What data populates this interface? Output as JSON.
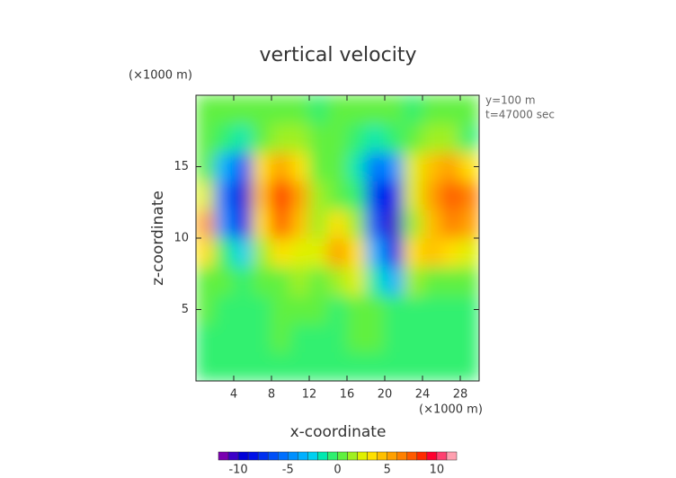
{
  "chart_data": {
    "type": "contour",
    "title": "vertical velocity",
    "y_unit": "(×1000 m)",
    "x_unit": "(×1000 m)",
    "annotations": [
      "y=100 m",
      "t=47000 sec"
    ],
    "xlabel": "x-coordinate",
    "ylabel": "z-coordinate",
    "xlim": [
      0,
      30
    ],
    "ylim": [
      0,
      20
    ],
    "xticks": [
      4,
      8,
      12,
      16,
      20,
      24,
      28
    ],
    "yticks": [
      5,
      10,
      15
    ],
    "x": [
      1,
      3,
      5,
      7,
      9,
      11,
      13,
      15,
      17,
      19,
      21,
      23,
      25,
      27,
      29
    ],
    "y": [
      1,
      3,
      5,
      7,
      9,
      11,
      13,
      15,
      17,
      19
    ],
    "z": [
      [
        -0.5,
        -0.5,
        -0.5,
        -0.5,
        -0.5,
        -0.5,
        -0.5,
        -0.5,
        -0.5,
        -0.5,
        -0.5,
        -0.5,
        -0.5,
        -0.5,
        -0.5
      ],
      [
        -0.5,
        -0.5,
        -0.5,
        -0.5,
        0,
        -0.5,
        -0.5,
        -0.5,
        0,
        0,
        -0.5,
        -0.5,
        -0.5,
        -0.5,
        -0.5
      ],
      [
        0,
        -0.5,
        -0.5,
        -0.5,
        0,
        0,
        0,
        -0.5,
        0,
        0,
        -0.5,
        -1,
        -0.5,
        -0.5,
        -0.5
      ],
      [
        0.5,
        0,
        -1,
        0,
        0.5,
        1,
        0.5,
        1.5,
        2,
        -1.5,
        -4,
        1,
        0.5,
        0.5,
        0.5
      ],
      [
        3,
        -1,
        -3,
        1.5,
        3,
        2.5,
        2,
        5,
        3,
        -4,
        -9,
        3,
        4,
        3,
        2
      ],
      [
        5,
        -5,
        -9,
        3,
        7,
        4,
        1.5,
        3,
        1,
        -7,
        -11,
        1,
        4,
        6,
        5
      ],
      [
        2,
        -6,
        -10,
        4,
        8,
        5,
        1,
        0.5,
        -1,
        -8,
        -9,
        2,
        5,
        7,
        6
      ],
      [
        0.5,
        -4,
        -7,
        3,
        5,
        3.5,
        0.5,
        0,
        -2,
        -6,
        -5,
        2,
        4,
        5,
        3
      ],
      [
        0,
        -1,
        -2,
        0.5,
        1.5,
        1,
        0,
        0,
        -0.5,
        -1.5,
        -1,
        0.5,
        1,
        1,
        -1
      ],
      [
        0,
        0,
        0,
        0,
        0,
        0,
        -0.5,
        0,
        0,
        0,
        0,
        -0.5,
        0,
        0,
        0
      ]
    ],
    "levels": [
      -12,
      -11,
      -10,
      -9,
      -8,
      -7,
      -6,
      -5,
      -4,
      -3,
      -2,
      -1,
      0,
      1,
      2,
      3,
      4,
      5,
      6,
      7,
      8,
      9,
      10,
      11,
      12
    ],
    "colors": [
      "#7a00b0",
      "#3c00c8",
      "#0000d8",
      "#0010e8",
      "#0030f0",
      "#0050f8",
      "#0070ff",
      "#0090ff",
      "#00b0ff",
      "#00d0f0",
      "#00e8b0",
      "#30f070",
      "#60f040",
      "#a0f020",
      "#e0f000",
      "#ffe000",
      "#ffc000",
      "#ffa000",
      "#ff8000",
      "#ff5a00",
      "#ff2a00",
      "#ff0030",
      "#ff4070",
      "#ffa0b0"
    ],
    "colorbar_ticks": [
      -10,
      -5,
      0,
      5,
      10
    ]
  }
}
